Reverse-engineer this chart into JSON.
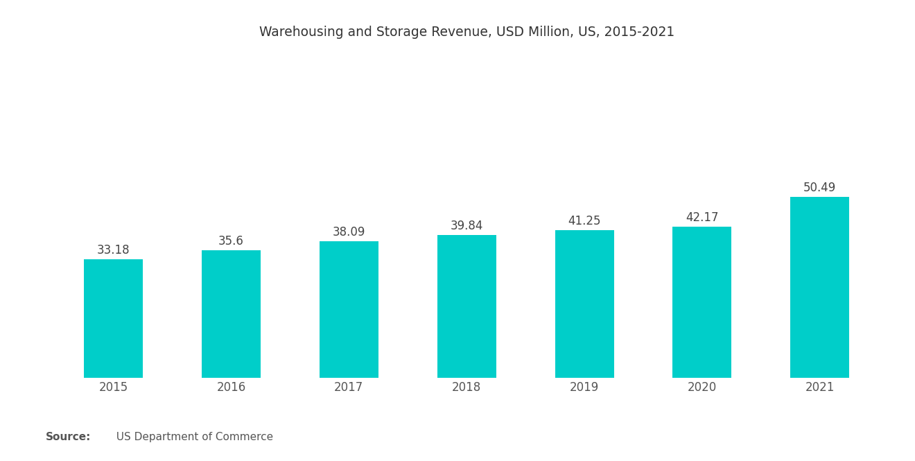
{
  "title": "Warehousing and Storage Revenue, USD Million, US, 2015-2021",
  "categories": [
    "2015",
    "2016",
    "2017",
    "2018",
    "2019",
    "2020",
    "2021"
  ],
  "values": [
    33.18,
    35.6,
    38.09,
    39.84,
    41.25,
    42.17,
    50.49
  ],
  "bar_color": "#00CEC9",
  "background_color": "#FFFFFF",
  "title_fontsize": 13.5,
  "tick_fontsize": 12,
  "source_bold": "Source:",
  "source_text": "  US Department of Commerce",
  "source_fontsize": 11,
  "ylim": [
    0,
    90
  ],
  "bar_width": 0.5,
  "title_color": "#333333",
  "tick_color": "#555555",
  "value_label_color": "#444444",
  "value_label_fontsize": 12
}
